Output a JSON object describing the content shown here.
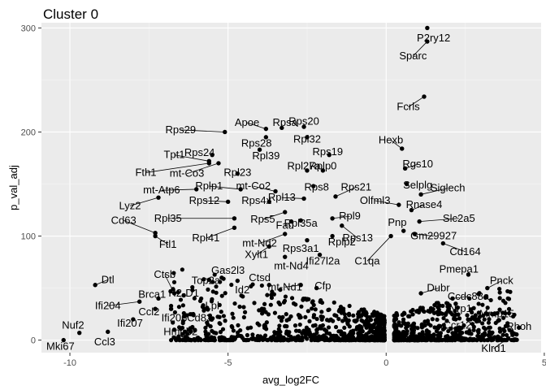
{
  "chart_data": {
    "type": "scatter",
    "title": "Cluster 0",
    "xlabel": "avg_log2FC",
    "ylabel": "p_val_adj",
    "xlim": [
      -10.9,
      4.9
    ],
    "ylim": [
      -12,
      305
    ],
    "x_ticks": [
      -10,
      -5,
      0,
      5
    ],
    "y_ticks": [
      0,
      100,
      200,
      300
    ],
    "x_tick_labels": [
      "-10",
      "-5",
      "0",
      "5"
    ],
    "y_tick_labels": [
      "0",
      "100",
      "200",
      "300"
    ],
    "grid": true,
    "background": "#ebebeb",
    "point_color": "#000000",
    "labeled_points": [
      {
        "gene": "P2ry12",
        "x": 1.3,
        "y": 300,
        "lx": 1.5,
        "ly": 290
      },
      {
        "gene": "Sparc",
        "x": 1.3,
        "y": 287,
        "lx": 0.85,
        "ly": 273
      },
      {
        "gene": "Fcrls",
        "x": 1.2,
        "y": 234,
        "lx": 0.7,
        "ly": 224
      },
      {
        "gene": "Hexb",
        "x": 0.5,
        "y": 184,
        "lx": 0.15,
        "ly": 192
      },
      {
        "gene": "Rgs10",
        "x": 0.6,
        "y": 165,
        "lx": 1.0,
        "ly": 169
      },
      {
        "gene": "Selplg",
        "x": 0.65,
        "y": 150,
        "lx": 1.0,
        "ly": 149
      },
      {
        "gene": "Siglech",
        "x": 1.1,
        "y": 140,
        "lx": 1.95,
        "ly": 146
      },
      {
        "gene": "Olfml3",
        "x": 0.4,
        "y": 130,
        "lx": -0.35,
        "ly": 134
      },
      {
        "gene": "Rnase4",
        "x": 0.8,
        "y": 125,
        "lx": 1.2,
        "ly": 130
      },
      {
        "gene": "Slc2a5",
        "x": 1.05,
        "y": 114,
        "lx": 2.3,
        "ly": 117
      },
      {
        "gene": "Pnp",
        "x": 0.55,
        "y": 105,
        "lx": 0.35,
        "ly": 113
      },
      {
        "gene": "Gm29927",
        "x": 0.9,
        "y": 102,
        "lx": 1.5,
        "ly": 100
      },
      {
        "gene": "Cd164",
        "x": 1.8,
        "y": 93,
        "lx": 2.5,
        "ly": 85
      },
      {
        "gene": "C1qa",
        "x": 0.15,
        "y": 100,
        "lx": -0.6,
        "ly": 76
      },
      {
        "gene": "Pmepa1",
        "x": 2.6,
        "y": 63,
        "lx": 2.3,
        "ly": 68
      },
      {
        "gene": "Pnck",
        "x": 3.2,
        "y": 50,
        "lx": 3.65,
        "ly": 57
      },
      {
        "gene": "Dubr",
        "x": 1.1,
        "y": 45,
        "lx": 1.65,
        "ly": 50
      },
      {
        "gene": "Ccdc88a",
        "x": 2.1,
        "y": 40,
        "lx": 2.6,
        "ly": 42
      },
      {
        "gene": "Nrp1",
        "x": 2.2,
        "y": 35,
        "lx": 2.35,
        "ly": 30
      },
      {
        "gene": "Mmp15",
        "x": 3.2,
        "y": 25,
        "lx": 3.5,
        "ly": 25
      },
      {
        "gene": "Ccr12",
        "x": 2.2,
        "y": 20,
        "lx": 2.25,
        "ly": 14
      },
      {
        "gene": "Rhoh",
        "x": 4.2,
        "y": 12,
        "lx": 4.2,
        "ly": 13
      },
      {
        "gene": "Klrd1",
        "x": 4.0,
        "y": 5,
        "lx": 3.4,
        "ly": -8
      },
      {
        "gene": "Rps20",
        "x": -2.6,
        "y": 205,
        "lx": -2.6,
        "ly": 210
      },
      {
        "gene": "Rpsa",
        "x": -3.3,
        "y": 204,
        "lx": -3.2,
        "ly": 209
      },
      {
        "gene": "Apoe",
        "x": -3.8,
        "y": 203,
        "lx": -4.4,
        "ly": 209
      },
      {
        "gene": "Rps29",
        "x": -5.1,
        "y": 200,
        "lx": -6.5,
        "ly": 202
      },
      {
        "gene": "Rpl32",
        "x": -2.5,
        "y": 195,
        "lx": -2.5,
        "ly": 193
      },
      {
        "gene": "Rps28",
        "x": -3.8,
        "y": 195,
        "lx": -4.1,
        "ly": 189
      },
      {
        "gene": "Rps19",
        "x": -1.8,
        "y": 178,
        "lx": -1.85,
        "ly": 181
      },
      {
        "gene": "Rpl39",
        "x": -4.0,
        "y": 183,
        "lx": -3.8,
        "ly": 177
      },
      {
        "gene": "Rps24",
        "x": -5.5,
        "y": 178,
        "lx": -5.9,
        "ly": 180
      },
      {
        "gene": "Tpt1",
        "x": -5.6,
        "y": 172,
        "lx": -6.7,
        "ly": 178
      },
      {
        "gene": "Rpl27a",
        "x": -2.5,
        "y": 163,
        "lx": -2.6,
        "ly": 167
      },
      {
        "gene": "Rplp0",
        "x": -2.0,
        "y": 163,
        "lx": -2.0,
        "ly": 167
      },
      {
        "gene": "Fth1",
        "x": -5.6,
        "y": 170,
        "lx": -7.6,
        "ly": 161
      },
      {
        "gene": "mt-Co3",
        "x": -5.3,
        "y": 170,
        "lx": -6.3,
        "ly": 160
      },
      {
        "gene": "Rpl23",
        "x": -4.7,
        "y": 160,
        "lx": -4.7,
        "ly": 161
      },
      {
        "gene": "Rps8",
        "x": -2.3,
        "y": 148,
        "lx": -2.2,
        "ly": 147
      },
      {
        "gene": "Rps21",
        "x": -1.6,
        "y": 138,
        "lx": -0.95,
        "ly": 147
      },
      {
        "gene": "Rplp1",
        "x": -4.6,
        "y": 145,
        "lx": -5.6,
        "ly": 148
      },
      {
        "gene": "mt-Co2",
        "x": -3.5,
        "y": 143,
        "lx": -4.2,
        "ly": 148
      },
      {
        "gene": "mt-Atp6",
        "x": -6.0,
        "y": 145,
        "lx": -7.1,
        "ly": 144
      },
      {
        "gene": "Rpl13",
        "x": -2.6,
        "y": 136,
        "lx": -3.3,
        "ly": 137
      },
      {
        "gene": "Rps4x",
        "x": -3.7,
        "y": 133,
        "lx": -4.1,
        "ly": 134
      },
      {
        "gene": "Rps12",
        "x": -5.0,
        "y": 133,
        "lx": -5.75,
        "ly": 134
      },
      {
        "gene": "Lyz2",
        "x": -7.2,
        "y": 137,
        "lx": -8.1,
        "ly": 129
      },
      {
        "gene": "Rpl9",
        "x": -1.7,
        "y": 117,
        "lx": -1.15,
        "ly": 119
      },
      {
        "gene": "Rpl35",
        "x": -4.8,
        "y": 117,
        "lx": -6.9,
        "ly": 117
      },
      {
        "gene": "Rps5",
        "x": -3.2,
        "y": 123,
        "lx": -3.9,
        "ly": 116
      },
      {
        "gene": "Fau",
        "x": -3.0,
        "y": 114,
        "lx": -3.2,
        "ly": 110
      },
      {
        "gene": "Rpl35a",
        "x": -2.7,
        "y": 115,
        "lx": -2.7,
        "ly": 112
      },
      {
        "gene": "Cd63",
        "x": -7.3,
        "y": 103,
        "lx": -8.3,
        "ly": 115
      },
      {
        "gene": "Rps13",
        "x": -1.4,
        "y": 110,
        "lx": -0.9,
        "ly": 98
      },
      {
        "gene": "Rpl41",
        "x": -4.8,
        "y": 108,
        "lx": -5.7,
        "ly": 98
      },
      {
        "gene": "Ftl1",
        "x": -7.3,
        "y": 100,
        "lx": -6.9,
        "ly": 92
      },
      {
        "gene": "Rplp2",
        "x": -1.7,
        "y": 100,
        "lx": -1.4,
        "ly": 94
      },
      {
        "gene": "mt-Nd2",
        "x": -3.2,
        "y": 102,
        "lx": -4.0,
        "ly": 93
      },
      {
        "gene": "Rps3a1",
        "x": -2.5,
        "y": 96,
        "lx": -2.7,
        "ly": 88
      },
      {
        "gene": "Xylt1",
        "x": -3.7,
        "y": 90,
        "lx": -4.1,
        "ly": 82
      },
      {
        "gene": "Ifi27l2a",
        "x": -2.1,
        "y": 82,
        "lx": -2.0,
        "ly": 76
      },
      {
        "gene": "mt-Nd4",
        "x": -3.2,
        "y": 80,
        "lx": -3.0,
        "ly": 71
      },
      {
        "gene": "Ctsb",
        "x": -6.7,
        "y": 45,
        "lx": -7.0,
        "ly": 63
      },
      {
        "gene": "Gas2l3",
        "x": -5.2,
        "y": 60,
        "lx": -5.0,
        "ly": 67
      },
      {
        "gene": "Top2a",
        "x": -5.6,
        "y": 58,
        "lx": -5.7,
        "ly": 57
      },
      {
        "gene": "Ctsd",
        "x": -3.7,
        "y": 53,
        "lx": -4.0,
        "ly": 60
      },
      {
        "gene": "Dtl",
        "x": -9.2,
        "y": 53,
        "lx": -8.8,
        "ly": 58
      },
      {
        "gene": "mt-Nd1",
        "x": -2.7,
        "y": 53,
        "lx": -3.2,
        "ly": 51
      },
      {
        "gene": "Id2",
        "x": -4.7,
        "y": 57,
        "lx": -4.55,
        "ly": 48
      },
      {
        "gene": "Cfp",
        "x": -2.2,
        "y": 50,
        "lx": -2.0,
        "ly": 52
      },
      {
        "gene": "H2-D1",
        "x": -6.4,
        "y": 43,
        "lx": -6.4,
        "ly": 45
      },
      {
        "gene": "Brca1",
        "x": -7.2,
        "y": 40,
        "lx": -7.4,
        "ly": 44
      },
      {
        "gene": "Lpl",
        "x": -5.8,
        "y": 32,
        "lx": -5.5,
        "ly": 33
      },
      {
        "gene": "Ifi204",
        "x": -7.8,
        "y": 37,
        "lx": -8.8,
        "ly": 33
      },
      {
        "gene": "Ccl2",
        "x": -7.3,
        "y": 30,
        "lx": -7.5,
        "ly": 27
      },
      {
        "gene": "Ifi206",
        "x": -6.8,
        "y": 30,
        "lx": -6.7,
        "ly": 21
      },
      {
        "gene": "Cd83",
        "x": -6.1,
        "y": 25,
        "lx": -5.9,
        "ly": 21
      },
      {
        "gene": "Ifi207",
        "x": -8.0,
        "y": 20,
        "lx": -8.1,
        "ly": 16
      },
      {
        "gene": "Hmgb2",
        "x": -6.7,
        "y": 10,
        "lx": -6.5,
        "ly": 8
      },
      {
        "gene": "Nuf2",
        "x": -9.7,
        "y": 7,
        "lx": -9.9,
        "ly": 14
      },
      {
        "gene": "Ccl3",
        "x": -8.8,
        "y": 8,
        "lx": -8.9,
        "ly": -2
      },
      {
        "gene": "Mki67",
        "x": -10.2,
        "y": 0,
        "lx": -10.3,
        "ly": -6
      }
    ]
  }
}
